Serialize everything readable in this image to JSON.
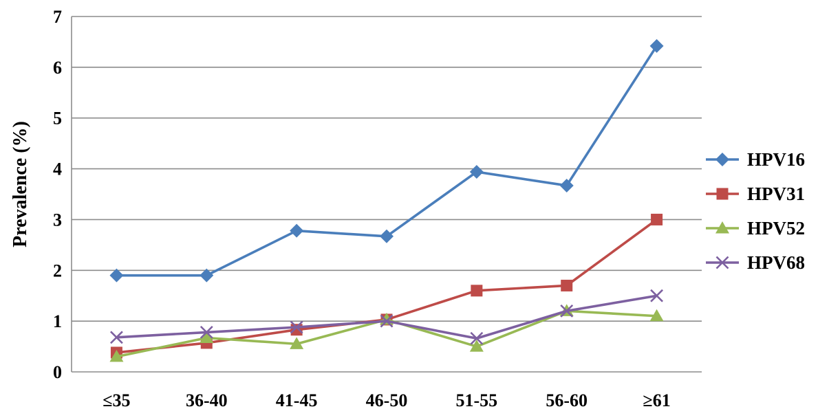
{
  "chart_data": {
    "type": "line",
    "title": "",
    "xlabel": "",
    "ylabel": "Prevalence (%)",
    "categories": [
      "≤35",
      "36-40",
      "41-45",
      "46-50",
      "51-55",
      "56-60",
      "≥61"
    ],
    "ylim": [
      0,
      7
    ],
    "yticks": [
      0,
      1,
      2,
      3,
      4,
      5,
      6,
      7
    ],
    "grid": "horizontal",
    "legend_position": "right",
    "series": [
      {
        "name": "HPV16",
        "color": "#4a7ebb",
        "marker": "diamond",
        "values": [
          1.9,
          1.9,
          2.78,
          2.67,
          3.94,
          3.67,
          6.42
        ]
      },
      {
        "name": "HPV31",
        "color": "#be4b48",
        "marker": "square",
        "values": [
          0.38,
          0.57,
          0.83,
          1.03,
          1.6,
          1.7,
          3.0
        ]
      },
      {
        "name": "HPV52",
        "color": "#98b954",
        "marker": "triangle",
        "values": [
          0.3,
          0.67,
          0.55,
          1.03,
          0.5,
          1.2,
          1.1
        ]
      },
      {
        "name": "HPV68",
        "color": "#7d60a0",
        "marker": "x",
        "values": [
          0.68,
          0.78,
          0.88,
          1.0,
          0.66,
          1.2,
          1.5
        ]
      }
    ]
  }
}
